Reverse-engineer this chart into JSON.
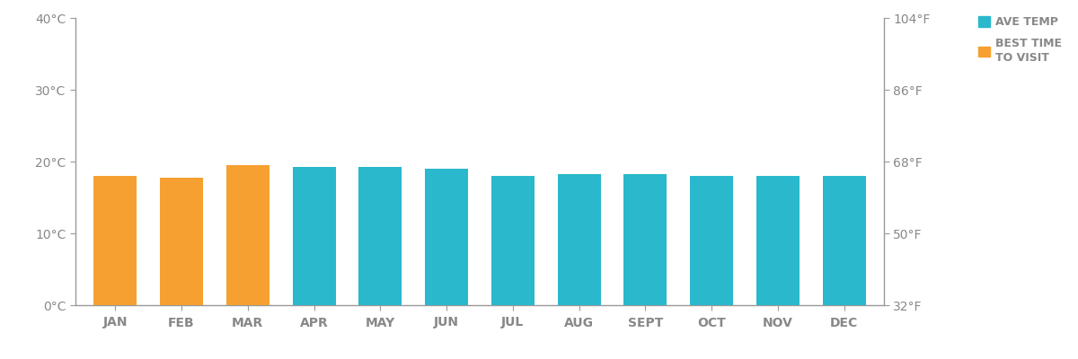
{
  "months": [
    "JAN",
    "FEB",
    "MAR",
    "APR",
    "MAY",
    "JUN",
    "JUL",
    "AUG",
    "SEPT",
    "OCT",
    "NOV",
    "DEC"
  ],
  "temperatures_c": [
    18.0,
    17.8,
    19.5,
    19.3,
    19.2,
    19.0,
    18.0,
    18.2,
    18.2,
    18.0,
    18.0,
    18.0
  ],
  "best_time_months": [
    0,
    1,
    2
  ],
  "bar_color_teal": "#29B8CC",
  "bar_color_orange": "#F5A030",
  "background_color": "#FFFFFF",
  "axis_color": "#999999",
  "tick_label_color": "#888888",
  "legend_text_color": "#888888",
  "ylim_c": [
    0,
    40
  ],
  "yticks_c": [
    0,
    10,
    20,
    30,
    40
  ],
  "ytick_labels_c": [
    "0°C",
    "10°C",
    "20°C",
    "30°C",
    "40°C"
  ],
  "ytick_labels_f": [
    "32°F",
    "50°F",
    "68°F",
    "86°F",
    "104°F"
  ],
  "legend_ave_temp": "AVE TEMP",
  "legend_best_time": "BEST TIME\nTO VISIT",
  "bar_width": 0.65,
  "tick_fontsize": 10,
  "legend_fontsize": 9
}
